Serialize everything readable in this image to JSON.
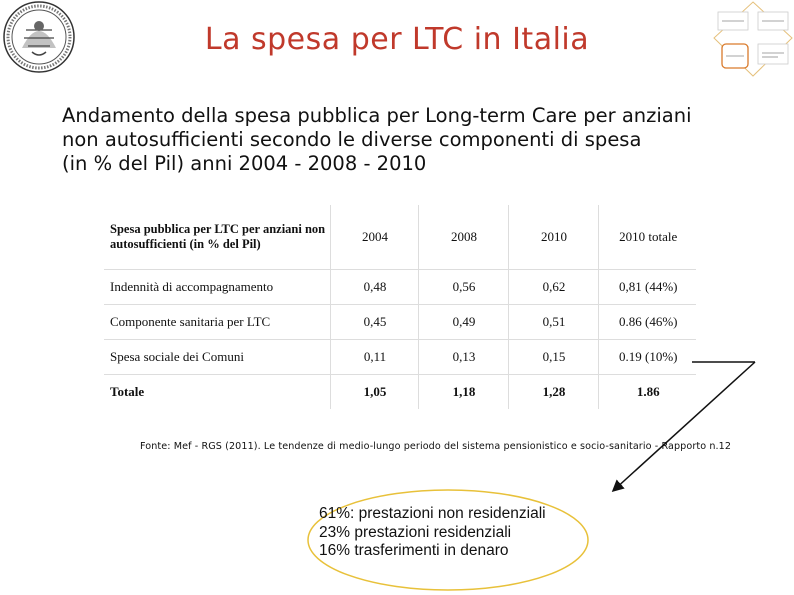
{
  "header": {
    "title": "La spesa per LTC in Italia"
  },
  "subtitle_lines": [
    "Andamento della spesa pubblica per Long-term Care per anziani",
    "non autosufficienti secondo le diverse componenti di spesa",
    "(in % del Pil) anni 2004 - 2008 - 2010"
  ],
  "table": {
    "header_label": "Spesa pubblica per LTC per anziani non autosufficienti (in % del Pil)",
    "columns": [
      "2004",
      "2008",
      "2010",
      "2010 totale"
    ],
    "rows": [
      {
        "label": "Indennità di accompagnamento",
        "values": [
          "0,48",
          "0,56",
          "0,62",
          "0,81 (44%)"
        ]
      },
      {
        "label": "Componente sanitaria per LTC",
        "values": [
          "0,45",
          "0,49",
          "0,51",
          "0.86 (46%)"
        ]
      },
      {
        "label": "Spesa sociale dei Comuni",
        "values": [
          "0,11",
          "0,13",
          "0,15",
          "0.19 (10%)"
        ]
      },
      {
        "label": "Totale",
        "values": [
          "1,05",
          "1,18",
          "1,28",
          "1.86"
        ]
      }
    ]
  },
  "source": "Fonte: Mef - RGS (2011). Le tendenze di medio-lungo periodo del sistema pensionistico e socio-sanitario - Rapporto n.12",
  "callout_lines": [
    "61%: prestazioni non residenziali",
    "23% prestazioni residenziali",
    "16% trasferimenti in denaro"
  ],
  "colors": {
    "title": "#c0392b",
    "ellipse": "#e8c13a",
    "diagram_stroke": "#d97a2b"
  }
}
